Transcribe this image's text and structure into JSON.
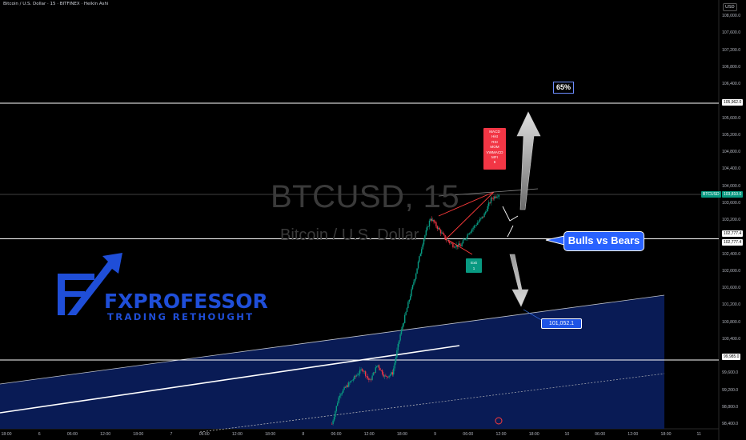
{
  "header": {
    "title": "Bitcoin / U.S. Dollar · 15 · BITFINEX · Heikin Ashi"
  },
  "watermark": {
    "symbol": "BTCUSD, 15",
    "description": "Bitcoin / U.S. Dollar"
  },
  "logo": {
    "wordmark": "FXPROFESSOR",
    "tagline": "TRADING RETHOUGHT"
  },
  "annotations": {
    "pct_label": "65%",
    "bulls_vs_bears": "Bulls vs Bears",
    "price_callout": "101,052.1",
    "indicator_labels": [
      "MACD",
      "Hist",
      "RSI",
      "MOM",
      "VWMACD",
      "MFI",
      "6"
    ],
    "exit_labels": [
      "Exit",
      "1"
    ]
  },
  "price_axis": {
    "unit": "USD",
    "ticks": [
      "108,000.0",
      "107,600.0",
      "107,200.0",
      "106,800.0",
      "106,400.0",
      "105,600.0",
      "105,200.0",
      "104,800.0",
      "104,400.0",
      "104,000.0",
      "103,600.0",
      "103,200.0",
      "102,400.0",
      "102,000.0",
      "101,600.0",
      "101,200.0",
      "100,800.0",
      "100,400.0",
      "99,600.0",
      "99,200.0",
      "98,800.0",
      "98,400.0"
    ],
    "tags": [
      {
        "text": "105,962.0",
        "style": "white",
        "price": 105962
      },
      {
        "text": "BTCUSD",
        "style": "green",
        "price": 103810
      },
      {
        "text": "103,810.0",
        "style": "green",
        "price": 103810
      },
      {
        "text": "102,777.4",
        "style": "white",
        "price": 102882
      },
      {
        "text": "102,777.4",
        "style": "white",
        "price": 102672
      },
      {
        "text": "99,985.0",
        "style": "white",
        "price": 99985
      }
    ]
  },
  "time_axis": {
    "labels": [
      "18:00",
      "6",
      "06:00",
      "12:00",
      "18:00",
      "7",
      "06:00",
      "12:00",
      "18:00",
      "8",
      "06:00",
      "12:00",
      "18:00",
      "9",
      "06:00",
      "12:00",
      "18:00",
      "10",
      "06:00",
      "12:00",
      "18:00",
      "11"
    ]
  },
  "chart_data": {
    "type": "candlestick",
    "title": "Bitcoin / U.S. Dollar · 15 · BITFINEX · Heikin Ashi",
    "ylim": [
      98400,
      108000
    ],
    "grid": false,
    "horizontal_levels": [
      105962.0,
      103810.0,
      102777.4,
      99985.0
    ],
    "last_price": 103810.0,
    "callout_price": 101052.1,
    "series": [
      {
        "name": "Heikin Ashi close",
        "x": [
          "8 02:00",
          "8 04:00",
          "8 06:00",
          "8 08:00",
          "8 10:00",
          "8 12:00",
          "8 14:00",
          "8 16:00",
          "8 18:00",
          "8 20:00",
          "8 22:00",
          "9 00:00",
          "9 01:00",
          "9 02:00",
          "9 03:00",
          "9 04:00",
          "9 05:00",
          "9 06:00",
          "9 07:00",
          "9 08:00",
          "9 09:00",
          "9 10:00",
          "9 11:00"
        ],
        "values": [
          98400,
          99100,
          99300,
          99500,
          99700,
          99400,
          99800,
          99500,
          99600,
          100500,
          101200,
          101900,
          102700,
          103250,
          103000,
          102750,
          102600,
          102600,
          102900,
          103100,
          103300,
          103700,
          103810
        ]
      }
    ]
  }
}
